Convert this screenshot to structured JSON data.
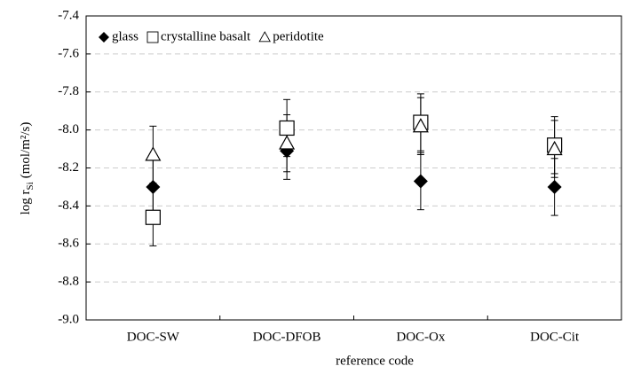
{
  "chart_data": {
    "type": "scatter",
    "xlabel": "reference code",
    "ylabel": "log r",
    "ylabel_sub": "Si",
    "ylabel_unit": "(mol/m²/s)",
    "categories": [
      "DOC-SW",
      "DOC-DFOB",
      "DOC-Ox",
      "DOC-Cit"
    ],
    "series": [
      {
        "name": "glass",
        "color": "#000000",
        "marker": "diamond",
        "values": [
          -8.3,
          -8.11,
          -8.27,
          -8.3
        ],
        "errors": [
          0.15,
          0.15,
          0.15,
          0.15
        ]
      },
      {
        "name": "crystalline basalt",
        "color": "#000000",
        "marker": "square",
        "values": [
          -8.46,
          -7.99,
          -7.96,
          -8.08
        ],
        "errors": [
          0.15,
          0.15,
          0.15,
          0.15
        ]
      },
      {
        "name": "peridotite",
        "color": "#000000",
        "marker": "triangle",
        "values": [
          -8.13,
          -8.07,
          -7.98,
          -8.1
        ],
        "errors": [
          0.15,
          0.15,
          0.15,
          0.15
        ]
      }
    ],
    "ylim": [
      -9.0,
      -7.4
    ],
    "yticks": [
      -7.4,
      -7.6,
      -7.8,
      {
        "value": -8.0,
        "label": "-8.0"
      },
      -8.2,
      -8.4,
      -8.6,
      -8.8,
      {
        "value": -9.0,
        "label": "-9.0"
      }
    ],
    "grid": true,
    "legend": "top-left"
  }
}
